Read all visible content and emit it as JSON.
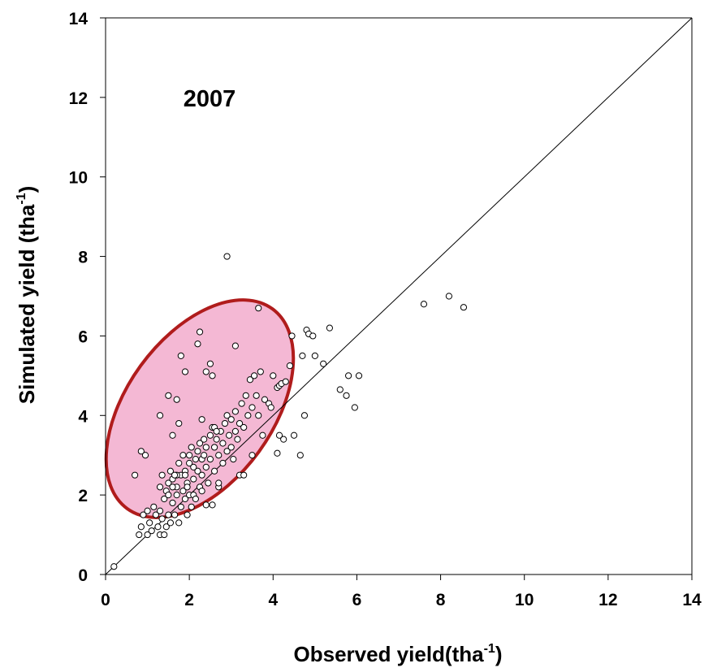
{
  "chart_data": {
    "type": "scatter",
    "annotation": "2007",
    "xlabel": "Observed yield(tha",
    "xlabel_sup": "-1",
    "xlabel_end": ")",
    "ylabel": "Simulated yield (tha",
    "ylabel_sup": "-1",
    "ylabel_end": ")",
    "xlim": [
      0,
      14
    ],
    "ylim": [
      0,
      14
    ],
    "xticks": [
      0,
      2,
      4,
      6,
      8,
      10,
      12,
      14
    ],
    "yticks": [
      0,
      2,
      4,
      6,
      8,
      10,
      12,
      14
    ],
    "grid": false,
    "reference_line": "1:1",
    "highlight_ellipse": {
      "fill": "#f4b8d4",
      "stroke": "#b01c1c"
    },
    "colors": {
      "point_stroke": "#000000",
      "point_fill": "#ffffff",
      "axis": "#000000"
    },
    "series": [
      {
        "values": [
          [
            0.2,
            0.2
          ],
          [
            0.7,
            2.5
          ],
          [
            0.85,
            3.1
          ],
          [
            0.95,
            3.0
          ],
          [
            0.8,
            1.0
          ],
          [
            0.85,
            1.2
          ],
          [
            0.9,
            1.5
          ],
          [
            1.0,
            1.6
          ],
          [
            1.0,
            1.0
          ],
          [
            1.05,
            1.3
          ],
          [
            1.1,
            1.1
          ],
          [
            1.15,
            1.7
          ],
          [
            1.2,
            1.5
          ],
          [
            1.25,
            1.2
          ],
          [
            1.3,
            1.0
          ],
          [
            1.3,
            1.6
          ],
          [
            1.35,
            1.4
          ],
          [
            1.4,
            1.0
          ],
          [
            1.45,
            1.2
          ],
          [
            1.5,
            1.5
          ],
          [
            1.55,
            1.3
          ],
          [
            1.3,
            2.2
          ],
          [
            1.35,
            2.5
          ],
          [
            1.4,
            1.9
          ],
          [
            1.45,
            2.1
          ],
          [
            1.5,
            2.3
          ],
          [
            1.5,
            2.0
          ],
          [
            1.55,
            2.6
          ],
          [
            1.6,
            1.8
          ],
          [
            1.6,
            2.4
          ],
          [
            1.65,
            1.5
          ],
          [
            1.7,
            2.2
          ],
          [
            1.7,
            2.0
          ],
          [
            1.75,
            2.8
          ],
          [
            1.75,
            1.3
          ],
          [
            1.8,
            2.5
          ],
          [
            1.8,
            1.7
          ],
          [
            1.85,
            2.1
          ],
          [
            1.85,
            3.0
          ],
          [
            1.9,
            1.9
          ],
          [
            1.9,
            2.6
          ],
          [
            1.95,
            2.3
          ],
          [
            1.95,
            1.5
          ],
          [
            2.0,
            2.8
          ],
          [
            2.0,
            2.0
          ],
          [
            2.05,
            1.7
          ],
          [
            2.05,
            3.2
          ],
          [
            2.1,
            2.4
          ],
          [
            2.1,
            2.0
          ],
          [
            2.15,
            2.9
          ],
          [
            2.15,
            1.9
          ],
          [
            2.2,
            2.6
          ],
          [
            2.2,
            3.1
          ],
          [
            2.25,
            2.2
          ],
          [
            2.25,
            3.3
          ],
          [
            2.3,
            2.5
          ],
          [
            2.3,
            2.9
          ],
          [
            2.35,
            3.0
          ],
          [
            2.4,
            2.7
          ],
          [
            2.4,
            3.2
          ],
          [
            2.45,
            2.3
          ],
          [
            2.5,
            3.5
          ],
          [
            2.5,
            2.9
          ],
          [
            2.55,
            3.7
          ],
          [
            2.6,
            3.2
          ],
          [
            2.6,
            2.6
          ],
          [
            2.65,
            3.4
          ],
          [
            2.7,
            3.0
          ],
          [
            2.7,
            2.2
          ],
          [
            2.75,
            3.6
          ],
          [
            2.8,
            3.3
          ],
          [
            2.8,
            2.8
          ],
          [
            2.85,
            3.8
          ],
          [
            2.9,
            4.0
          ],
          [
            2.9,
            3.1
          ],
          [
            2.95,
            3.5
          ],
          [
            3.0,
            3.9
          ],
          [
            3.0,
            3.2
          ],
          [
            3.05,
            2.9
          ],
          [
            3.1,
            3.6
          ],
          [
            3.1,
            4.1
          ],
          [
            3.15,
            3.4
          ],
          [
            3.2,
            2.5
          ],
          [
            3.2,
            3.8
          ],
          [
            3.25,
            4.3
          ],
          [
            3.3,
            3.7
          ],
          [
            3.3,
            2.5
          ],
          [
            3.35,
            4.5
          ],
          [
            3.4,
            4.0
          ],
          [
            3.45,
            4.9
          ],
          [
            3.5,
            4.2
          ],
          [
            3.5,
            3.0
          ],
          [
            3.55,
            5.0
          ],
          [
            3.6,
            4.5
          ],
          [
            3.65,
            4.0
          ],
          [
            3.7,
            5.1
          ],
          [
            3.75,
            3.5
          ],
          [
            3.8,
            4.4
          ],
          [
            3.9,
            4.3
          ],
          [
            3.95,
            4.2
          ],
          [
            1.3,
            4.0
          ],
          [
            1.5,
            4.5
          ],
          [
            1.6,
            3.5
          ],
          [
            1.7,
            4.4
          ],
          [
            1.75,
            3.8
          ],
          [
            1.8,
            5.5
          ],
          [
            1.9,
            5.1
          ],
          [
            2.2,
            5.8
          ],
          [
            2.25,
            6.1
          ],
          [
            2.3,
            3.9
          ],
          [
            2.35,
            3.4
          ],
          [
            2.4,
            5.1
          ],
          [
            2.5,
            5.3
          ],
          [
            2.55,
            5.0
          ],
          [
            2.6,
            3.7
          ],
          [
            2.65,
            3.6
          ],
          [
            3.1,
            5.75
          ],
          [
            3.65,
            6.7
          ],
          [
            2.9,
            8.0
          ],
          [
            1.9,
            2.5
          ],
          [
            1.7,
            2.5
          ],
          [
            2.1,
            2.7
          ],
          [
            2.0,
            3.0
          ],
          [
            1.95,
            2.2
          ],
          [
            2.3,
            2.1
          ],
          [
            2.4,
            1.75
          ],
          [
            2.55,
            1.75
          ],
          [
            2.7,
            2.3
          ],
          [
            1.6,
            2.2
          ],
          [
            1.65,
            2.5
          ],
          [
            4.0,
            5.0
          ],
          [
            4.1,
            4.7
          ],
          [
            4.15,
            4.75
          ],
          [
            4.2,
            4.8
          ],
          [
            4.3,
            4.85
          ],
          [
            4.4,
            5.25
          ],
          [
            4.45,
            6.0
          ],
          [
            4.1,
            3.05
          ],
          [
            4.15,
            3.5
          ],
          [
            4.25,
            3.4
          ],
          [
            4.5,
            3.5
          ],
          [
            4.65,
            3.0
          ],
          [
            4.7,
            5.5
          ],
          [
            4.75,
            4.0
          ],
          [
            4.8,
            6.15
          ],
          [
            4.85,
            6.05
          ],
          [
            4.95,
            6.0
          ],
          [
            5.0,
            5.5
          ],
          [
            5.2,
            5.3
          ],
          [
            5.35,
            6.2
          ],
          [
            5.6,
            4.65
          ],
          [
            5.75,
            4.5
          ],
          [
            5.8,
            5.0
          ],
          [
            5.95,
            4.2
          ],
          [
            6.05,
            5.0
          ],
          [
            7.6,
            6.8
          ],
          [
            8.2,
            7.0
          ],
          [
            8.55,
            6.72
          ]
        ]
      }
    ]
  }
}
